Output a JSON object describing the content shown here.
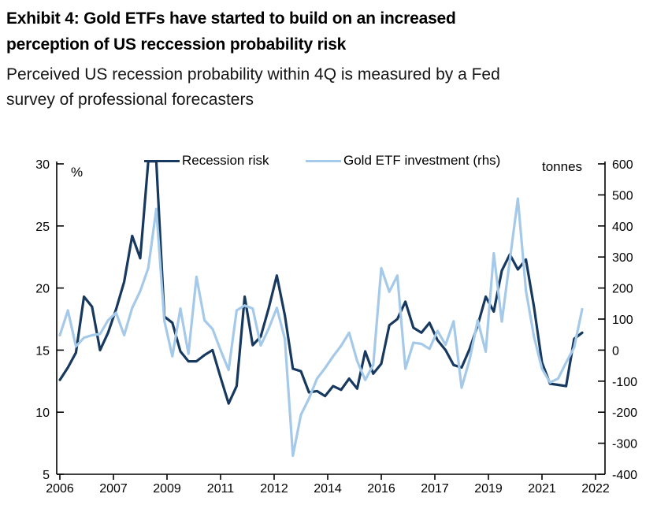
{
  "header": {
    "title": "Exhibit 4: Gold ETFs have started to build on an increased perception of US reccession probability risk",
    "subtitle": "Perceived US recession probability within 4Q is measured by a Fed survey of professional forecasters"
  },
  "legend": [
    {
      "label": "Recession risk",
      "color": "#17395F"
    },
    {
      "label": "Gold ETF investment (rhs)",
      "color": "#A5C9E8"
    }
  ],
  "chart_data": {
    "type": "line",
    "frequency": "quarterly",
    "x": [
      "2006Q1",
      "2006Q2",
      "2006Q3",
      "2006Q4",
      "2007Q1",
      "2007Q2",
      "2007Q3",
      "2007Q4",
      "2008Q1",
      "2008Q2",
      "2008Q3",
      "2008Q4",
      "2009Q1",
      "2009Q2",
      "2009Q3",
      "2009Q4",
      "2010Q1",
      "2010Q2",
      "2010Q3",
      "2010Q4",
      "2011Q1",
      "2011Q2",
      "2011Q3",
      "2011Q4",
      "2012Q1",
      "2012Q2",
      "2012Q3",
      "2012Q4",
      "2013Q1",
      "2013Q2",
      "2013Q3",
      "2013Q4",
      "2014Q1",
      "2014Q2",
      "2014Q3",
      "2014Q4",
      "2015Q1",
      "2015Q2",
      "2015Q3",
      "2015Q4",
      "2016Q1",
      "2016Q2",
      "2016Q3",
      "2016Q4",
      "2017Q1",
      "2017Q2",
      "2017Q3",
      "2017Q4",
      "2018Q1",
      "2018Q2",
      "2018Q3",
      "2018Q4",
      "2019Q1",
      "2019Q2",
      "2019Q3",
      "2019Q4",
      "2020Q1",
      "2020Q2",
      "2020Q3",
      "2020Q4",
      "2021Q1",
      "2021Q2",
      "2021Q3",
      "2021Q4",
      "2022Q1",
      "2022Q2"
    ],
    "x_tick_labels": [
      "2006",
      "2007",
      "2009",
      "2011",
      "2012",
      "2014",
      "2016",
      "2017",
      "2019",
      "2021",
      "2022"
    ],
    "series": [
      {
        "name": "Recession risk",
        "axis": "left",
        "unit": "%",
        "color": "#17395F",
        "values": [
          12.6,
          13.6,
          14.8,
          19.3,
          18.5,
          15.0,
          16.4,
          18.3,
          20.5,
          24.2,
          22.4,
          30.2,
          30.2,
          17.7,
          17.2,
          14.9,
          14.1,
          14.1,
          14.6,
          15.0,
          12.8,
          10.7,
          12.1,
          19.3,
          15.4,
          16.1,
          18.4,
          21.0,
          17.8,
          13.5,
          13.3,
          11.6,
          11.7,
          11.3,
          12.1,
          11.8,
          12.7,
          11.9,
          14.9,
          13.1,
          13.9,
          17.0,
          17.5,
          18.9,
          16.8,
          16.4,
          17.2,
          15.8,
          15.0,
          13.8,
          13.6,
          15.1,
          17.0,
          19.3,
          18.1,
          21.4,
          22.7,
          21.5,
          22.3,
          18.5,
          14.0,
          12.3,
          12.2,
          12.1,
          15.9,
          16.4
        ]
      },
      {
        "name": "Gold ETF investment (rhs)",
        "axis": "right",
        "unit": "tonnes",
        "color": "#A5C9E8",
        "values": [
          48,
          128,
          12,
          40,
          48,
          52,
          96,
          120,
          48,
          136,
          190,
          264,
          455,
          95,
          -20,
          134,
          -12,
          236,
          96,
          68,
          0,
          -64,
          128,
          144,
          134,
          15,
          70,
          136,
          36,
          -340,
          -208,
          -156,
          -92,
          -58,
          -20,
          14,
          56,
          -35,
          -96,
          -48,
          264,
          188,
          240,
          -60,
          24,
          20,
          4,
          62,
          17,
          93,
          -121,
          -30,
          96,
          -5,
          312,
          92,
          290,
          488,
          192,
          44,
          -60,
          -104,
          -92,
          -40,
          8,
          132
        ]
      }
    ],
    "left_axis": {
      "label": "%",
      "min": 5,
      "max": 30,
      "ticks": [
        30,
        25,
        20,
        15,
        10,
        5
      ]
    },
    "right_axis": {
      "label": "tonnes",
      "min": -400,
      "max": 600,
      "ticks": [
        600,
        500,
        400,
        300,
        200,
        100,
        0,
        -100,
        -200,
        -300,
        -400
      ]
    },
    "grid": false,
    "legend_position": "top-inside"
  }
}
